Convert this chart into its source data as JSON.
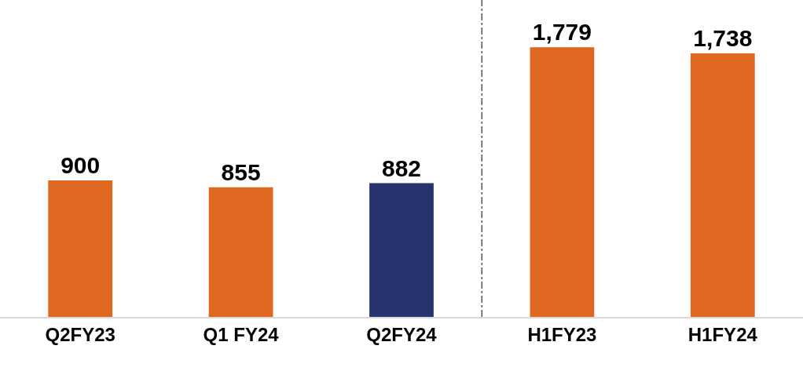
{
  "chart_data": {
    "type": "bar",
    "categories": [
      "Q2FY23",
      "Q1 FY24",
      "Q2FY24",
      "H1FY23",
      "H1FY24"
    ],
    "values": [
      900,
      855,
      882,
      1779,
      1738
    ],
    "colors": [
      "#e0671f",
      "#e0671f",
      "#27336e",
      "#e0671f",
      "#e0671f"
    ],
    "value_labels": [
      "900",
      "855",
      "882",
      "1,779",
      "1,738"
    ]
  }
}
